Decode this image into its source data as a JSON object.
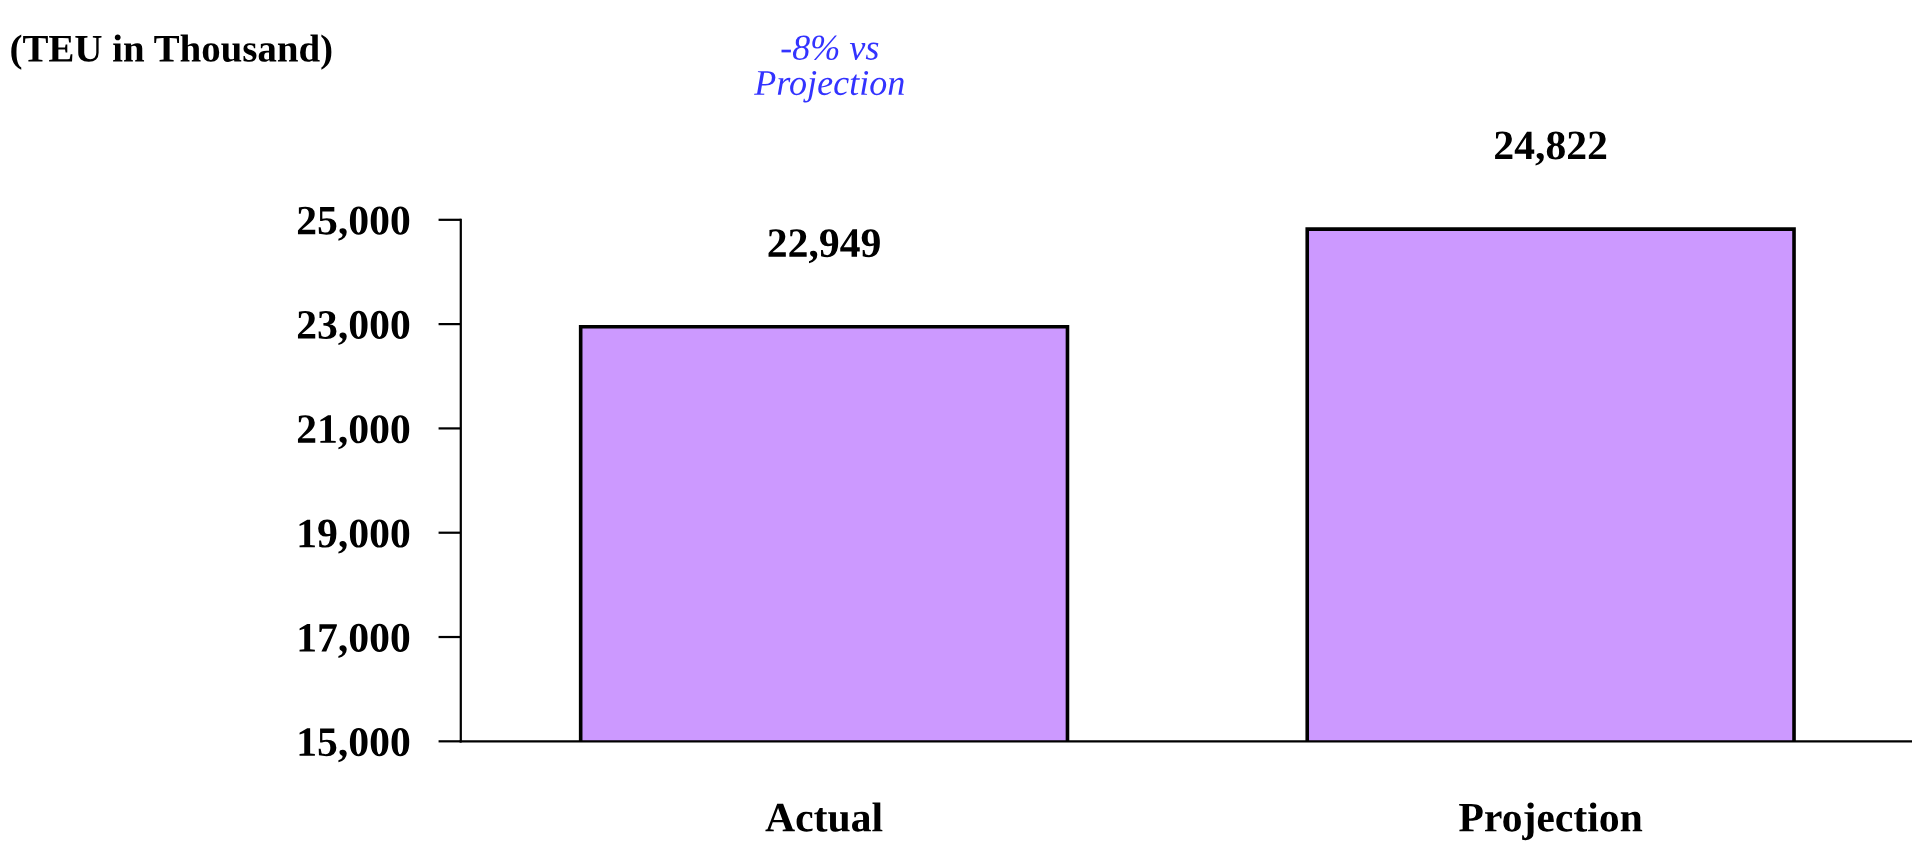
{
  "chart_data": {
    "type": "bar",
    "ylabel": "(TEU in Thousand)",
    "categories": [
      "Actual",
      "Projection"
    ],
    "values": [
      22949,
      24822
    ],
    "color": "#cc99ff",
    "value_labels": [
      "22,949",
      "24,822"
    ],
    "ylim": [
      15000,
      25000
    ],
    "yticks": [
      {
        "value": 15000,
        "label": "15,000"
      },
      {
        "value": 17000,
        "label": "17,000"
      },
      {
        "value": 19000,
        "label": "19,000"
      },
      {
        "value": 21000,
        "label": "21,000"
      },
      {
        "value": 23000,
        "label": "23,000"
      },
      {
        "value": 25000,
        "label": "25,000"
      }
    ],
    "annotations": [
      "-8% vs\nProjection"
    ],
    "grid": false
  }
}
